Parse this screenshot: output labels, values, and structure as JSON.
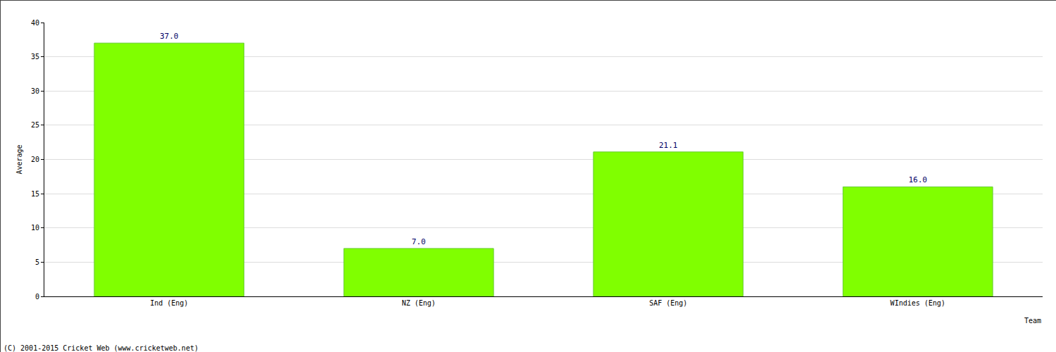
{
  "chart_data": {
    "type": "bar",
    "xlabel": "Team",
    "ylabel": "Average",
    "categories": [
      "Ind (Eng)",
      "NZ (Eng)",
      "SAF (Eng)",
      "WIndies (Eng)"
    ],
    "values": [
      37.0,
      7.0,
      21.1,
      16.0
    ],
    "value_labels": [
      "37.0",
      "7.0",
      "21.1",
      "16.0"
    ],
    "data_labels": true,
    "color": "#80ff00",
    "ylim": [
      0,
      40
    ],
    "yticks": [
      0,
      5,
      10,
      15,
      20,
      25,
      30,
      35,
      40
    ],
    "grid": true,
    "annotations": [
      {
        "text": "(C) 2001-2015 Cricket Web (www.cricketweb.net)"
      }
    ]
  }
}
